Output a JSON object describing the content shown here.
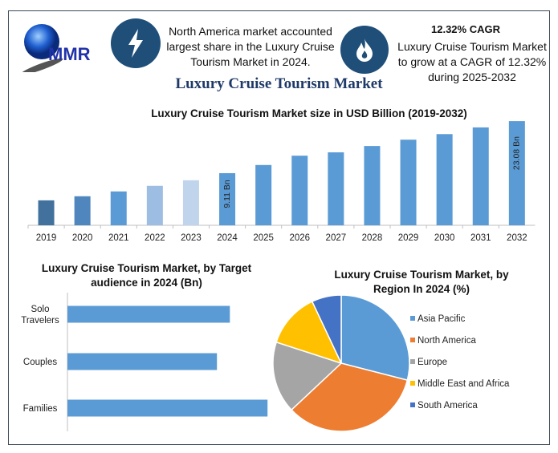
{
  "logo": {
    "text": "MMR"
  },
  "header": {
    "left_icon": "lightning-icon",
    "left_text": "North America market accounted largest share in the Luxury Cruise Tourism Market in 2024.",
    "right_icon": "flame-icon",
    "right_title": "12.32% CAGR",
    "right_text": "Luxury Cruise Tourism Market to grow at a CAGR of 12.32% during 2025-2032"
  },
  "main_title": "Luxury Cruise Tourism Market",
  "colors": {
    "accent": "#1f4e79",
    "bar": "#5b9bd5"
  },
  "chart_data": [
    {
      "type": "bar",
      "title": "Luxury Cruise Tourism Market size in USD Billion (2019-2032)",
      "categories": [
        "2019",
        "2020",
        "2021",
        "2022",
        "2023",
        "2024",
        "2025",
        "2026",
        "2027",
        "2028",
        "2029",
        "2030",
        "2031",
        "2032"
      ],
      "values": [
        1.8,
        2.9,
        4.2,
        5.7,
        7.2,
        9.11,
        11.3,
        13.8,
        14.7,
        16.4,
        18.1,
        19.6,
        21.4,
        23.08
      ],
      "colors": [
        "#41719c",
        "#4e86bd",
        "#5b9bd5",
        "#9dbde3",
        "#c0d5ec",
        "#5b9bd5",
        "#5b9bd5",
        "#5b9bd5",
        "#5b9bd5",
        "#5b9bd5",
        "#5b9bd5",
        "#5b9bd5",
        "#5b9bd5",
        "#5b9bd5"
      ],
      "data_labels": {
        "2024": "9.11 Bn",
        "2032": "23.08 Bn"
      },
      "ylim": [
        -4.9,
        23.1
      ],
      "grid": false
    },
    {
      "type": "bar",
      "orientation": "horizontal",
      "title": "Luxury Cruise Tourism Market, by Target audience in 2024 (Bn)",
      "categories": [
        "Solo Travelers",
        "Couples",
        "Families"
      ],
      "values": [
        2.89,
        2.66,
        3.56
      ],
      "color": "#5b9bd5",
      "xlim": [
        0,
        4
      ],
      "grid": false
    },
    {
      "type": "pie",
      "title": "Luxury Cruise Tourism Market, by Region In 2024 (%)",
      "labels": [
        "Asia Pacific",
        "North America",
        "Europe",
        "Middle East and Africa",
        "South America"
      ],
      "values": [
        29,
        34,
        17,
        13,
        7
      ],
      "colors": [
        "#5b9bd5",
        "#ed7d31",
        "#a5a5a5",
        "#ffc000",
        "#4472c4"
      ],
      "legend": "right"
    }
  ]
}
